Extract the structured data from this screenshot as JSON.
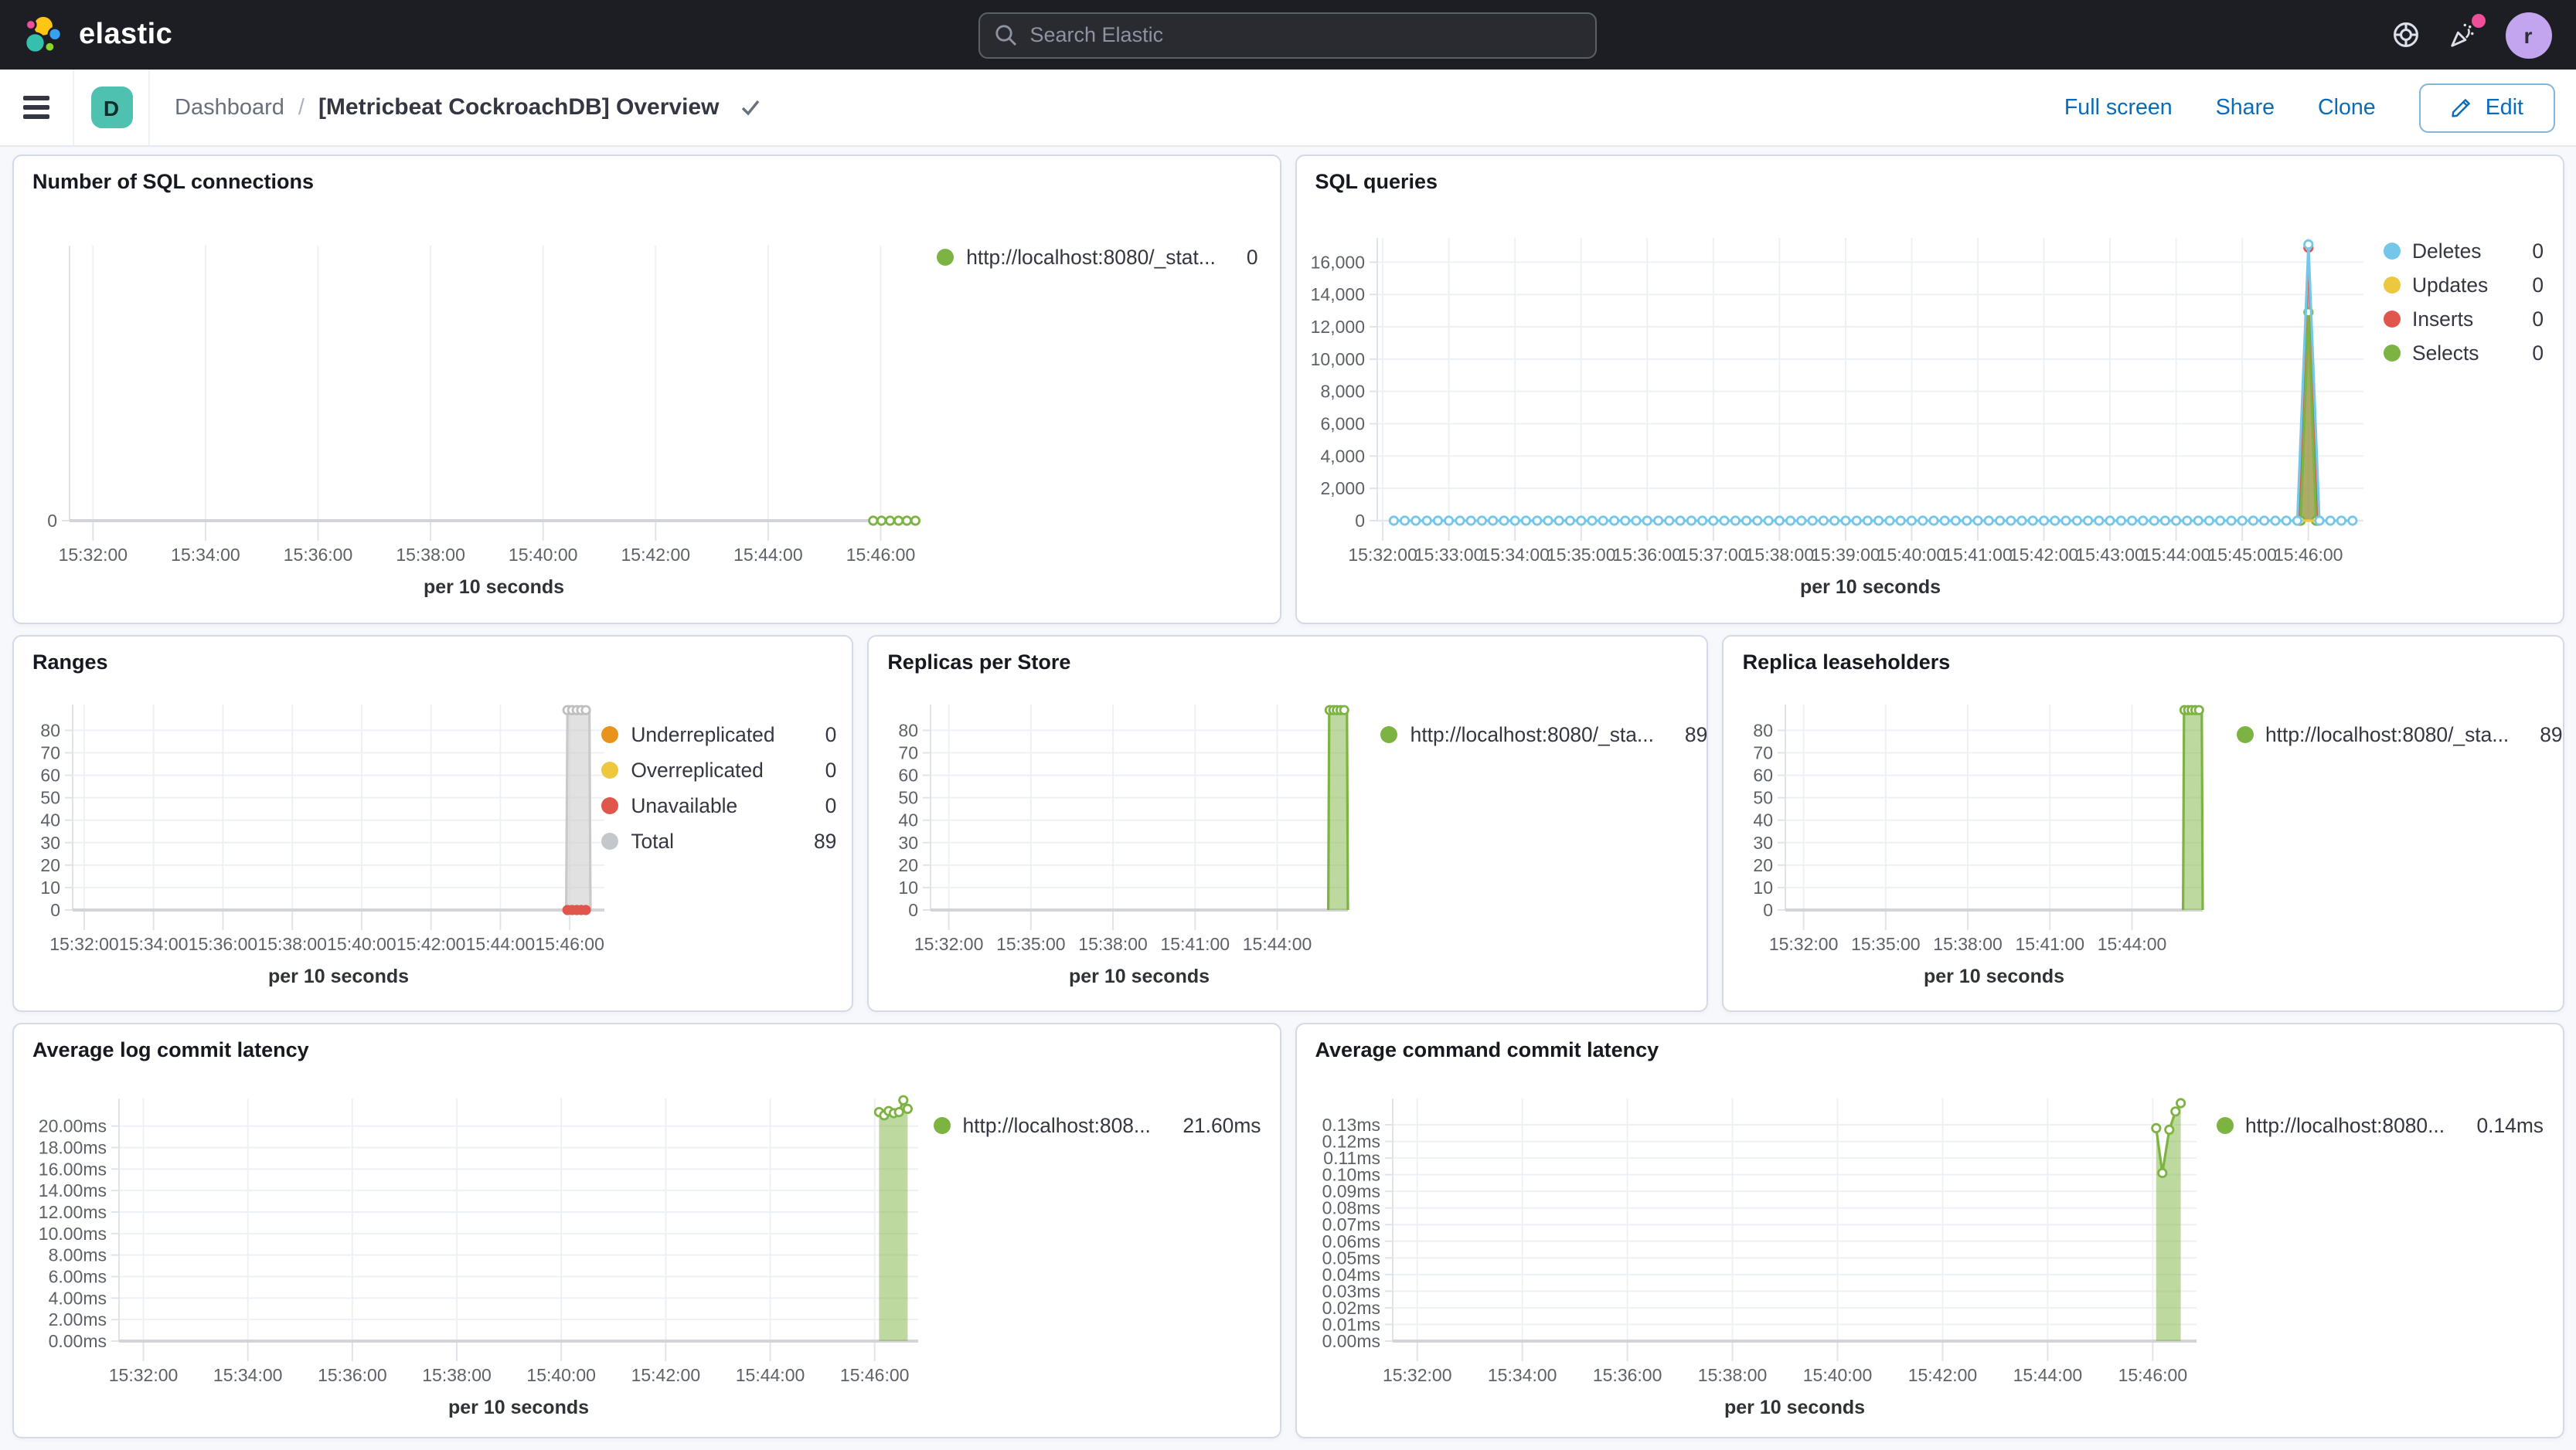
{
  "header": {
    "logo_text": "elastic",
    "search_placeholder": "Search Elastic",
    "avatar_initial": "r",
    "notification_color": "#f04e98"
  },
  "toolbar": {
    "breadcrumb_root": "Dashboard",
    "breadcrumb_sep": "/",
    "space_initial": "D",
    "title": "[Metricbeat CockroachDB] Overview",
    "full_screen_label": "Full screen",
    "share_label": "Share",
    "clone_label": "Clone",
    "edit_label": "Edit"
  },
  "colors": {
    "accent_blue": "#0a6cb8",
    "header_bg": "#1d1e24",
    "panel_border": "#d3dae6",
    "series_green": "#7db342",
    "series_blue": "#74c7e8",
    "series_yellow": "#edc73e",
    "series_red": "#e0564c",
    "series_orange": "#e8941c",
    "series_gray": "#c4c7cc"
  },
  "panels": {
    "p1": {
      "title": "Number of SQL connections",
      "legend": [
        {
          "label": "http://localhost:8080/_stat...",
          "value": "0",
          "color": "#7db342"
        }
      ],
      "chart": {
        "type": "line",
        "xlabel": "per 10 seconds",
        "xdomain": [
          "15:31:35",
          "15:46:40"
        ],
        "xticks": [
          "15:32:00",
          "15:34:00",
          "15:36:00",
          "15:38:00",
          "15:40:00",
          "15:42:00",
          "15:44:00",
          "15:46:00"
        ],
        "yticks": [
          [
            0,
            "0"
          ]
        ],
        "ymax": 10,
        "hgrid": false,
        "zero_line": true,
        "series": [
          {
            "name": "http://localhost:8080/_stat...",
            "type": "markers",
            "color": "#7db342",
            "flat": [
              {
                "y": 0,
                "from": "15:45:52",
                "to": "15:46:38",
                "interval": 9
              }
            ]
          }
        ]
      }
    },
    "p2": {
      "title": "SQL queries",
      "legend": [
        {
          "label": "Deletes",
          "value": "0",
          "color": "#74c7e8"
        },
        {
          "label": "Updates",
          "value": "0",
          "color": "#edc73e"
        },
        {
          "label": "Inserts",
          "value": "0",
          "color": "#e0564c"
        },
        {
          "label": "Selects",
          "value": "0",
          "color": "#7db342"
        }
      ],
      "chart": {
        "type": "area",
        "xlabel": "per 10 seconds",
        "xdomain": [
          "15:31:55",
          "15:46:50"
        ],
        "xticks": [
          "15:32:00",
          "15:33:00",
          "15:34:00",
          "15:35:00",
          "15:36:00",
          "15:37:00",
          "15:38:00",
          "15:39:00",
          "15:40:00",
          "15:41:00",
          "15:42:00",
          "15:43:00",
          "15:44:00",
          "15:45:00",
          "15:46:00"
        ],
        "yticks": [
          [
            0,
            "0"
          ],
          [
            2000,
            "2,000"
          ],
          [
            4000,
            "4,000"
          ],
          [
            6000,
            "6,000"
          ],
          [
            8000,
            "8,000"
          ],
          [
            10000,
            "10,000"
          ],
          [
            12000,
            "12,000"
          ],
          [
            14000,
            "14,000"
          ],
          [
            16000,
            "16,000"
          ]
        ],
        "ymax": 17500,
        "hgrid": true,
        "zero_line": false,
        "series": [
          {
            "name": "Inserts",
            "type": "area",
            "color": "#e0564c",
            "fill_opacity": 0.55,
            "markers": true,
            "points": [
              [
                "15:45:52",
                0
              ],
              [
                "15:46:00",
                16900
              ],
              [
                "15:46:08",
                0
              ]
            ]
          },
          {
            "name": "Selects",
            "type": "area",
            "color": "#7db342",
            "fill_opacity": 0.6,
            "markers": true,
            "points": [
              [
                "15:45:53",
                0
              ],
              [
                "15:46:00",
                12900
              ],
              [
                "15:46:07",
                0
              ]
            ]
          },
          {
            "name": "Updates",
            "type": "line",
            "color": "#edc73e",
            "points": [
              [
                "15:45:52",
                0
              ],
              [
                "15:46:08",
                0
              ]
            ]
          },
          {
            "name": "Deletes",
            "type": "line",
            "color": "#74c7e8",
            "markers": true,
            "flat": [
              {
                "y": 0,
                "from": "15:32:10",
                "to": "15:45:40",
                "interval": 10
              },
              {
                "y": 0,
                "from": "15:46:20",
                "to": "15:46:45",
                "interval": 10
              }
            ],
            "points": [
              [
                "15:45:50",
                0
              ],
              [
                "15:46:00",
                17100
              ],
              [
                "15:46:10",
                0
              ]
            ]
          }
        ]
      }
    },
    "p3": {
      "title": "Ranges",
      "legend": [
        {
          "label": "Underreplicated",
          "value": "0",
          "color": "#e8941c"
        },
        {
          "label": "Overreplicated",
          "value": "0",
          "color": "#edc73e"
        },
        {
          "label": "Unavailable",
          "value": "0",
          "color": "#e0564c"
        },
        {
          "label": "Total",
          "value": "89",
          "color": "#c4c7cc"
        }
      ],
      "chart": {
        "type": "area",
        "xlabel": "per 10 seconds",
        "xdomain": [
          "15:31:40",
          "15:47:00"
        ],
        "xticks": [
          "15:32:00",
          "15:34:00",
          "15:36:00",
          "15:38:00",
          "15:40:00",
          "15:42:00",
          "15:44:00",
          "15:46:00"
        ],
        "yticks": [
          [
            0,
            "0"
          ],
          [
            10,
            "10"
          ],
          [
            20,
            "20"
          ],
          [
            30,
            "30"
          ],
          [
            40,
            "40"
          ],
          [
            50,
            "50"
          ],
          [
            60,
            "60"
          ],
          [
            70,
            "70"
          ],
          [
            80,
            "80"
          ]
        ],
        "ymax": 91.5,
        "hgrid": true,
        "zero_line": true,
        "series": [
          {
            "name": "Total",
            "type": "area",
            "color": "#c9c9c9",
            "fill_opacity": 0.55,
            "points": [
              [
                "15:45:54",
                0
              ],
              [
                "15:45:56",
                89
              ],
              [
                "15:46:34",
                89
              ],
              [
                "15:46:36",
                0
              ]
            ]
          },
          {
            "name": "Total markers",
            "type": "markers",
            "color": "#bfbfbf",
            "flat": [
              {
                "y": 89,
                "from": "15:45:56",
                "to": "15:46:34",
                "interval": 8
              }
            ]
          },
          {
            "name": "Unavailable",
            "type": "markers",
            "color": "#e0564c",
            "solid": true,
            "flat": [
              {
                "y": 0,
                "from": "15:45:56",
                "to": "15:46:32",
                "interval": 8
              }
            ]
          }
        ]
      }
    },
    "p4": {
      "title": "Replicas per Store",
      "legend": [
        {
          "label": "http://localhost:8080/_sta...",
          "value": "89",
          "color": "#7db342"
        }
      ],
      "chart": {
        "type": "area",
        "xlabel": "per 10 seconds",
        "xdomain": [
          "15:31:20",
          "15:46:35"
        ],
        "xticks": [
          "15:32:00",
          "15:35:00",
          "15:38:00",
          "15:41:00",
          "15:44:00"
        ],
        "yticks": [
          [
            0,
            "0"
          ],
          [
            10,
            "10"
          ],
          [
            20,
            "20"
          ],
          [
            30,
            "30"
          ],
          [
            40,
            "40"
          ],
          [
            50,
            "50"
          ],
          [
            60,
            "60"
          ],
          [
            70,
            "70"
          ],
          [
            80,
            "80"
          ]
        ],
        "ymax": 91.5,
        "hgrid": true,
        "zero_line": true,
        "series": [
          {
            "name": "http://localhost:8080/_sta...",
            "type": "area",
            "color": "#7db342",
            "fill_opacity": 0.5,
            "points": [
              [
                "15:45:52",
                0
              ],
              [
                "15:45:54",
                89
              ],
              [
                "15:46:33",
                89
              ],
              [
                "15:46:35",
                0
              ]
            ]
          },
          {
            "name": "top markers",
            "type": "markers",
            "color": "#7db342",
            "flat": [
              {
                "y": 89,
                "from": "15:45:55",
                "to": "15:46:33",
                "interval": 8
              }
            ]
          }
        ]
      }
    },
    "p5": {
      "title": "Replica leaseholders",
      "legend": [
        {
          "label": "http://localhost:8080/_sta...",
          "value": "89",
          "color": "#7db342"
        }
      ],
      "chart": {
        "type": "area",
        "xlabel": "per 10 seconds",
        "xdomain": [
          "15:31:20",
          "15:46:35"
        ],
        "xticks": [
          "15:32:00",
          "15:35:00",
          "15:38:00",
          "15:41:00",
          "15:44:00"
        ],
        "yticks": [
          [
            0,
            "0"
          ],
          [
            10,
            "10"
          ],
          [
            20,
            "20"
          ],
          [
            30,
            "30"
          ],
          [
            40,
            "40"
          ],
          [
            50,
            "50"
          ],
          [
            60,
            "60"
          ],
          [
            70,
            "70"
          ],
          [
            80,
            "80"
          ]
        ],
        "ymax": 91.5,
        "hgrid": true,
        "zero_line": true,
        "series": [
          {
            "name": "http://localhost:8080/_sta...",
            "type": "area",
            "color": "#7db342",
            "fill_opacity": 0.5,
            "points": [
              [
                "15:45:52",
                0
              ],
              [
                "15:45:54",
                89
              ],
              [
                "15:46:33",
                89
              ],
              [
                "15:46:35",
                0
              ]
            ]
          },
          {
            "name": "top markers",
            "type": "markers",
            "color": "#7db342",
            "flat": [
              {
                "y": 89,
                "from": "15:45:55",
                "to": "15:46:33",
                "interval": 8
              }
            ]
          }
        ]
      }
    },
    "p6": {
      "title": "Average log commit latency",
      "legend": [
        {
          "label": "http://localhost:808...",
          "value": "21.60ms",
          "color": "#7db342"
        }
      ],
      "chart": {
        "type": "area",
        "xlabel": "per 10 seconds",
        "xdomain": [
          "15:31:32",
          "15:46:50"
        ],
        "xticks": [
          "15:32:00",
          "15:34:00",
          "15:36:00",
          "15:38:00",
          "15:40:00",
          "15:42:00",
          "15:44:00",
          "15:46:00"
        ],
        "yticks": [
          [
            0,
            "0.00ms"
          ],
          [
            2,
            "2.00ms"
          ],
          [
            4,
            "4.00ms"
          ],
          [
            6,
            "6.00ms"
          ],
          [
            8,
            "8.00ms"
          ],
          [
            10,
            "10.00ms"
          ],
          [
            12,
            "12.00ms"
          ],
          [
            14,
            "14.00ms"
          ],
          [
            16,
            "16.00ms"
          ],
          [
            18,
            "18.00ms"
          ],
          [
            20,
            "20.00ms"
          ]
        ],
        "ymax": 22.56,
        "hgrid": true,
        "zero_line": true,
        "series": [
          {
            "name": "http://localhost:808...",
            "type": "area",
            "color": "#7db342",
            "fill_opacity": 0.5,
            "markers": true,
            "points": [
              [
                "15:46:05",
                21.3
              ],
              [
                "15:46:11",
                21.0
              ],
              [
                "15:46:16",
                21.4
              ],
              [
                "15:46:22",
                21.2
              ],
              [
                "15:46:28",
                21.3
              ],
              [
                "15:46:33",
                22.4
              ],
              [
                "15:46:38",
                21.6
              ]
            ]
          }
        ]
      }
    },
    "p7": {
      "title": "Average command commit latency",
      "legend": [
        {
          "label": "http://localhost:8080...",
          "value": "0.14ms",
          "color": "#7db342"
        }
      ],
      "chart": {
        "type": "area",
        "xlabel": "per 10 seconds",
        "xdomain": [
          "15:31:32",
          "15:46:50"
        ],
        "xticks": [
          "15:32:00",
          "15:34:00",
          "15:36:00",
          "15:38:00",
          "15:40:00",
          "15:42:00",
          "15:44:00",
          "15:46:00"
        ],
        "yticks": [
          [
            0,
            "0.00ms"
          ],
          [
            0.01,
            "0.01ms"
          ],
          [
            0.02,
            "0.02ms"
          ],
          [
            0.03,
            "0.03ms"
          ],
          [
            0.04,
            "0.04ms"
          ],
          [
            0.05,
            "0.05ms"
          ],
          [
            0.06,
            "0.06ms"
          ],
          [
            0.07,
            "0.07ms"
          ],
          [
            0.08,
            "0.08ms"
          ],
          [
            0.09,
            "0.09ms"
          ],
          [
            0.1,
            "0.10ms"
          ],
          [
            0.11,
            "0.11ms"
          ],
          [
            0.12,
            "0.12ms"
          ],
          [
            0.13,
            "0.13ms"
          ]
        ],
        "ymax": 0.1458,
        "hgrid": true,
        "zero_line": true,
        "series": [
          {
            "name": "http://localhost:8080...",
            "type": "area",
            "color": "#7db342",
            "fill_opacity": 0.5,
            "markers": true,
            "points": [
              [
                "15:46:04",
                0.128
              ],
              [
                "15:46:11",
                0.101
              ],
              [
                "15:46:19",
                0.127
              ],
              [
                "15:46:26",
                0.138
              ],
              [
                "15:46:32",
                0.143
              ]
            ]
          }
        ]
      }
    }
  }
}
